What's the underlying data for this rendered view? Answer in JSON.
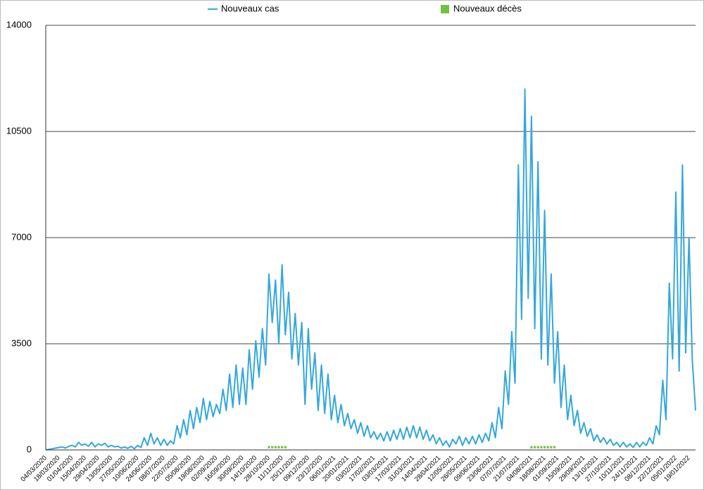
{
  "chart_data": {
    "type": "line",
    "categories": [
      "04/03/2020",
      null,
      null,
      null,
      "18/03/2020",
      null,
      null,
      null,
      "01/04/2020",
      null,
      null,
      null,
      "15/04/2020",
      null,
      null,
      null,
      "29/04/2020",
      null,
      null,
      null,
      "13/05/2020",
      null,
      null,
      null,
      "27/05/2020",
      null,
      null,
      null,
      "10/06/2020",
      null,
      null,
      null,
      "24/06/2020",
      null,
      null,
      null,
      "08/07/2020",
      null,
      null,
      null,
      "22/07/2020",
      null,
      null,
      null,
      "05/08/2020",
      null,
      null,
      null,
      "19/08/2020",
      null,
      null,
      null,
      "02/09/2020",
      null,
      null,
      null,
      "16/09/2020",
      null,
      null,
      null,
      "30/09/2020",
      null,
      null,
      null,
      "14/10/2020",
      null,
      null,
      null,
      "28/10/2020",
      null,
      null,
      null,
      "11/11/2020",
      null,
      null,
      null,
      "25/11/2020",
      null,
      null,
      null,
      "09/12/2020",
      null,
      null,
      null,
      "23/12/2020",
      null,
      null,
      null,
      "06/01/2021",
      null,
      null,
      null,
      "20/01/2021",
      null,
      null,
      null,
      "03/02/2021",
      null,
      null,
      null,
      "17/02/2021",
      null,
      null,
      null,
      "03/03/2021",
      null,
      null,
      null,
      "17/03/2021",
      null,
      null,
      null,
      "31/03/2021",
      null,
      null,
      null,
      "14/04/2021",
      null,
      null,
      null,
      "28/04/2021",
      null,
      null,
      null,
      "12/05/2021",
      null,
      null,
      null,
      "26/05/2021",
      null,
      null,
      null,
      "09/06/2021",
      null,
      null,
      null,
      "23/06/2021",
      null,
      null,
      null,
      "07/07/2021",
      null,
      null,
      null,
      "21/07/2021",
      null,
      null,
      null,
      "04/08/2021",
      null,
      null,
      null,
      "18/08/2021",
      null,
      null,
      null,
      "01/09/2021",
      null,
      null,
      null,
      "15/09/2021",
      null,
      null,
      null,
      "29/09/2021",
      null,
      null,
      null,
      "13/10/2021",
      null,
      null,
      null,
      "27/10/2021",
      null,
      null,
      null,
      "10/11/2021",
      null,
      null,
      null,
      "24/11/2021",
      null,
      null,
      null,
      "08/12/2021",
      null,
      null,
      null,
      "22/12/2021",
      null,
      null,
      null,
      "05/01/2022",
      null,
      null,
      null,
      "19/01/2022",
      null,
      null
    ],
    "series": [
      {
        "name": "Nouveaux cas",
        "type": "line",
        "color": "#34a7dc",
        "values": [
          0,
          20,
          40,
          60,
          80,
          100,
          60,
          120,
          150,
          100,
          250,
          150,
          200,
          120,
          250,
          100,
          200,
          150,
          220,
          100,
          150,
          100,
          120,
          60,
          100,
          50,
          120,
          40,
          150,
          80,
          400,
          150,
          550,
          200,
          400,
          150,
          350,
          150,
          300,
          200,
          800,
          400,
          1000,
          500,
          1300,
          700,
          1400,
          900,
          1700,
          1000,
          1600,
          1100,
          1500,
          1200,
          2000,
          1300,
          2500,
          1400,
          2800,
          1500,
          2700,
          1500,
          3300,
          2000,
          3600,
          2400,
          4000,
          2800,
          5800,
          4200,
          5600,
          3500,
          6100,
          3800,
          5200,
          3000,
          4500,
          2800,
          4200,
          1500,
          4000,
          2000,
          3200,
          1300,
          2800,
          1200,
          2500,
          1000,
          1800,
          900,
          1500,
          800,
          1200,
          700,
          1000,
          550,
          900,
          450,
          800,
          400,
          600,
          350,
          550,
          300,
          600,
          300,
          650,
          350,
          700,
          350,
          750,
          400,
          800,
          400,
          750,
          350,
          650,
          300,
          500,
          200,
          400,
          150,
          300,
          100,
          350,
          200,
          450,
          150,
          400,
          200,
          450,
          200,
          500,
          250,
          550,
          300,
          900,
          400,
          1400,
          700,
          2600,
          1500,
          3900,
          2200,
          9400,
          4300,
          11900,
          5000,
          11000,
          4000,
          9500,
          3000,
          7900,
          2800,
          5800,
          2200,
          3900,
          1400,
          2800,
          1000,
          1800,
          800,
          1300,
          550,
          900,
          450,
          700,
          300,
          500,
          250,
          400,
          200,
          350,
          150,
          250,
          100,
          250,
          100,
          200,
          80,
          250,
          100,
          250,
          150,
          400,
          200,
          800,
          500,
          2300,
          1000,
          5500,
          3000,
          8500,
          2600,
          9400,
          3200,
          7000,
          3000,
          1300
        ]
      },
      {
        "name": "Nouveaux décès",
        "type": "square",
        "color": "#72c041",
        "values": [
          null,
          null,
          null,
          null,
          null,
          null,
          null,
          null,
          null,
          null,
          null,
          null,
          null,
          null,
          null,
          null,
          null,
          null,
          null,
          null,
          null,
          null,
          null,
          null,
          null,
          null,
          null,
          null,
          null,
          null,
          null,
          null,
          null,
          null,
          null,
          null,
          null,
          null,
          null,
          null,
          null,
          null,
          null,
          null,
          null,
          null,
          null,
          null,
          null,
          null,
          null,
          null,
          null,
          null,
          null,
          null,
          null,
          null,
          null,
          null,
          null,
          null,
          null,
          null,
          null,
          null,
          null,
          null,
          90,
          90,
          90,
          90,
          90,
          90,
          null,
          null,
          null,
          null,
          null,
          null,
          null,
          null,
          null,
          null,
          null,
          null,
          null,
          null,
          null,
          null,
          null,
          null,
          null,
          null,
          null,
          null,
          null,
          null,
          null,
          null,
          null,
          null,
          null,
          null,
          null,
          null,
          null,
          null,
          null,
          null,
          null,
          null,
          null,
          null,
          null,
          null,
          null,
          null,
          null,
          null,
          null,
          null,
          null,
          null,
          null,
          null,
          null,
          null,
          null,
          null,
          null,
          null,
          null,
          null,
          null,
          null,
          null,
          null,
          null,
          null,
          null,
          null,
          null,
          null,
          null,
          null,
          null,
          null,
          90,
          90,
          90,
          90,
          90,
          90,
          90,
          90,
          null,
          null,
          null,
          null,
          null,
          null,
          null,
          null,
          null,
          null,
          null,
          null,
          null,
          null,
          null,
          null,
          null,
          null,
          null,
          null,
          null,
          null,
          null,
          null,
          null,
          null,
          null,
          null,
          null,
          null,
          null,
          null,
          null,
          null,
          null,
          null,
          null,
          null,
          null,
          null,
          null,
          null,
          null
        ]
      }
    ],
    "ylim": [
      0,
      14000
    ],
    "yticks": [
      0,
      3500,
      7000,
      10500,
      14000
    ],
    "grid": true
  }
}
